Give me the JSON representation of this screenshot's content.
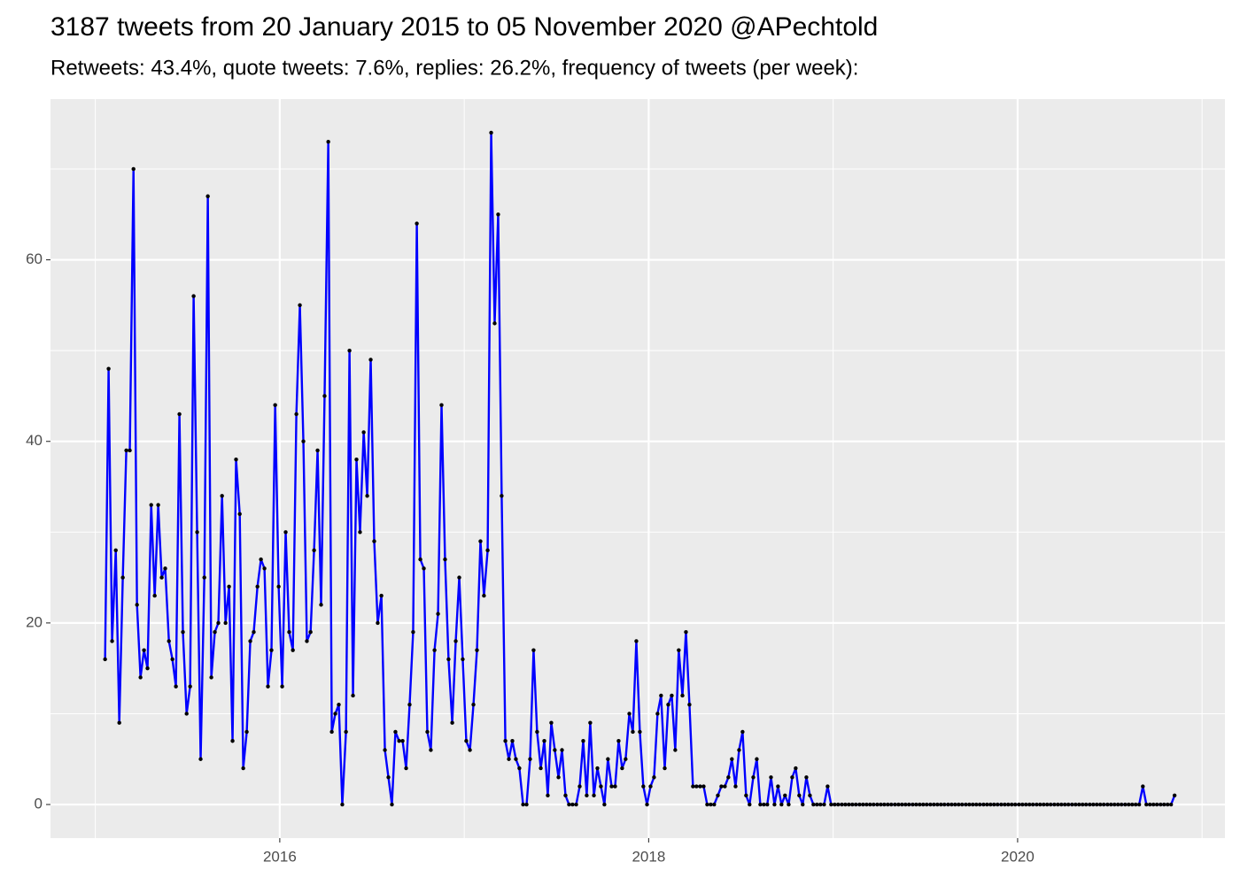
{
  "chart_data": {
    "type": "line",
    "title": "3187 tweets from 20 January 2015 to 05 November 2020 @APechtold",
    "subtitle": "Retweets: 43.4%, quote tweets: 7.6%, replies: 26.2%, frequency of tweets (per week):",
    "x": [
      2015.053,
      2015.072,
      2015.091,
      2015.111,
      2015.13,
      2015.149,
      2015.168,
      2015.187,
      2015.207,
      2015.226,
      2015.245,
      2015.264,
      2015.283,
      2015.303,
      2015.322,
      2015.341,
      2015.36,
      2015.379,
      2015.399,
      2015.418,
      2015.437,
      2015.456,
      2015.475,
      2015.495,
      2015.514,
      2015.533,
      2015.552,
      2015.571,
      2015.591,
      2015.61,
      2015.629,
      2015.648,
      2015.667,
      2015.687,
      2015.706,
      2015.725,
      2015.744,
      2015.763,
      2015.783,
      2015.802,
      2015.821,
      2015.84,
      2015.859,
      2015.879,
      2015.898,
      2015.917,
      2015.936,
      2015.955,
      2015.975,
      2015.994,
      2016.013,
      2016.032,
      2016.051,
      2016.071,
      2016.09,
      2016.109,
      2016.128,
      2016.147,
      2016.167,
      2016.186,
      2016.205,
      2016.224,
      2016.243,
      2016.263,
      2016.282,
      2016.301,
      2016.32,
      2016.339,
      2016.359,
      2016.378,
      2016.397,
      2016.416,
      2016.435,
      2016.455,
      2016.474,
      2016.493,
      2016.512,
      2016.531,
      2016.551,
      2016.57,
      2016.589,
      2016.608,
      2016.627,
      2016.647,
      2016.666,
      2016.685,
      2016.704,
      2016.723,
      2016.743,
      2016.762,
      2016.781,
      2016.8,
      2016.819,
      2016.839,
      2016.858,
      2016.877,
      2016.896,
      2016.915,
      2016.935,
      2016.954,
      2016.973,
      2016.992,
      2017.011,
      2017.031,
      2017.05,
      2017.069,
      2017.088,
      2017.107,
      2017.127,
      2017.146,
      2017.165,
      2017.184,
      2017.203,
      2017.223,
      2017.242,
      2017.261,
      2017.28,
      2017.299,
      2017.319,
      2017.338,
      2017.357,
      2017.376,
      2017.395,
      2017.415,
      2017.434,
      2017.453,
      2017.472,
      2017.491,
      2017.511,
      2017.53,
      2017.549,
      2017.568,
      2017.587,
      2017.607,
      2017.626,
      2017.645,
      2017.664,
      2017.683,
      2017.703,
      2017.722,
      2017.741,
      2017.76,
      2017.779,
      2017.799,
      2017.818,
      2017.837,
      2017.856,
      2017.875,
      2017.895,
      2017.914,
      2017.933,
      2017.952,
      2017.971,
      2017.991,
      2018.01,
      2018.029,
      2018.048,
      2018.067,
      2018.087,
      2018.106,
      2018.125,
      2018.144,
      2018.163,
      2018.183,
      2018.202,
      2018.221,
      2018.24,
      2018.259,
      2018.279,
      2018.298,
      2018.317,
      2018.336,
      2018.355,
      2018.375,
      2018.394,
      2018.413,
      2018.432,
      2018.451,
      2018.471,
      2018.49,
      2018.509,
      2018.528,
      2018.547,
      2018.567,
      2018.586,
      2018.605,
      2018.624,
      2018.643,
      2018.663,
      2018.682,
      2018.701,
      2018.72,
      2018.739,
      2018.759,
      2018.778,
      2018.797,
      2018.816,
      2018.835,
      2018.855,
      2018.874,
      2018.893,
      2018.912,
      2018.931,
      2018.951,
      2018.97,
      2018.989,
      2019.008,
      2019.027,
      2019.047,
      2019.066,
      2019.085,
      2019.104,
      2019.123,
      2019.143,
      2019.162,
      2019.181,
      2019.2,
      2019.219,
      2019.239,
      2019.258,
      2019.277,
      2019.296,
      2019.315,
      2019.335,
      2019.354,
      2019.373,
      2019.392,
      2019.411,
      2019.431,
      2019.45,
      2019.469,
      2019.488,
      2019.507,
      2019.527,
      2019.546,
      2019.565,
      2019.584,
      2019.603,
      2019.623,
      2019.642,
      2019.661,
      2019.68,
      2019.699,
      2019.719,
      2019.738,
      2019.757,
      2019.776,
      2019.795,
      2019.815,
      2019.834,
      2019.853,
      2019.872,
      2019.891,
      2019.911,
      2019.93,
      2019.949,
      2019.968,
      2019.987,
      2020.007,
      2020.026,
      2020.045,
      2020.064,
      2020.083,
      2020.103,
      2020.122,
      2020.141,
      2020.16,
      2020.179,
      2020.199,
      2020.218,
      2020.237,
      2020.256,
      2020.275,
      2020.295,
      2020.314,
      2020.333,
      2020.352,
      2020.371,
      2020.391,
      2020.41,
      2020.429,
      2020.448,
      2020.467,
      2020.487,
      2020.506,
      2020.525,
      2020.544,
      2020.563,
      2020.583,
      2020.602,
      2020.621,
      2020.64,
      2020.659,
      2020.679,
      2020.698,
      2020.717,
      2020.736,
      2020.755,
      2020.775,
      2020.794,
      2020.813,
      2020.832,
      2020.851
    ],
    "values": [
      16,
      48,
      18,
      28,
      9,
      25,
      39,
      39,
      70,
      22,
      14,
      17,
      15,
      33,
      23,
      33,
      25,
      26,
      18,
      16,
      13,
      43,
      19,
      10,
      13,
      56,
      30,
      5,
      25,
      67,
      14,
      19,
      20,
      34,
      20,
      24,
      7,
      38,
      32,
      4,
      8,
      18,
      19,
      24,
      27,
      26,
      13,
      17,
      44,
      24,
      13,
      30,
      19,
      17,
      43,
      55,
      40,
      18,
      19,
      28,
      39,
      22,
      45,
      73,
      8,
      10,
      11,
      0,
      8,
      50,
      12,
      38,
      30,
      41,
      34,
      49,
      29,
      20,
      23,
      6,
      3,
      0,
      8,
      7,
      7,
      4,
      11,
      19,
      64,
      27,
      26,
      8,
      6,
      17,
      21,
      44,
      27,
      16,
      9,
      18,
      25,
      16,
      7,
      6,
      11,
      17,
      29,
      23,
      28,
      74,
      53,
      65,
      34,
      7,
      5,
      7,
      5,
      4,
      0,
      0,
      5,
      17,
      8,
      4,
      7,
      1,
      9,
      6,
      3,
      6,
      1,
      0,
      0,
      0,
      2,
      7,
      1,
      9,
      1,
      4,
      2,
      0,
      5,
      2,
      2,
      7,
      4,
      5,
      10,
      8,
      18,
      8,
      2,
      0,
      2,
      3,
      10,
      12,
      4,
      11,
      12,
      6,
      17,
      12,
      19,
      11,
      2,
      2,
      2,
      2,
      0,
      0,
      0,
      1,
      2,
      2,
      3,
      5,
      2,
      6,
      8,
      1,
      0,
      3,
      5,
      0,
      0,
      0,
      3,
      0,
      2,
      0,
      1,
      0,
      3,
      4,
      1,
      0,
      3,
      1,
      0,
      0,
      0,
      0,
      2,
      0,
      0,
      0,
      0,
      0,
      0,
      0,
      0,
      0,
      0,
      0,
      0,
      0,
      0,
      0,
      0,
      0,
      0,
      0,
      0,
      0,
      0,
      0,
      0,
      0,
      0,
      0,
      0,
      0,
      0,
      0,
      0,
      0,
      0,
      0,
      0,
      0,
      0,
      0,
      0,
      0,
      0,
      0,
      0,
      0,
      0,
      0,
      0,
      0,
      0,
      0,
      0,
      0,
      0,
      0,
      0,
      0,
      0,
      0,
      0,
      0,
      0,
      0,
      0,
      0,
      0,
      0,
      0,
      0,
      0,
      0,
      0,
      0,
      0,
      0,
      0,
      0,
      0,
      0,
      0,
      0,
      0,
      0,
      0,
      0,
      0,
      0,
      0,
      2,
      0,
      0,
      0,
      0,
      0,
      0,
      0,
      0,
      1
    ],
    "color": "#0000ff",
    "marker_color": "#000000",
    "xlim": [
      2014.757,
      2021.124
    ],
    "xticks": [
      2016,
      2018,
      2020
    ],
    "ylim": [
      -3.7,
      77.7
    ],
    "yticks": [
      0,
      20,
      40,
      60
    ],
    "grid": true
  }
}
